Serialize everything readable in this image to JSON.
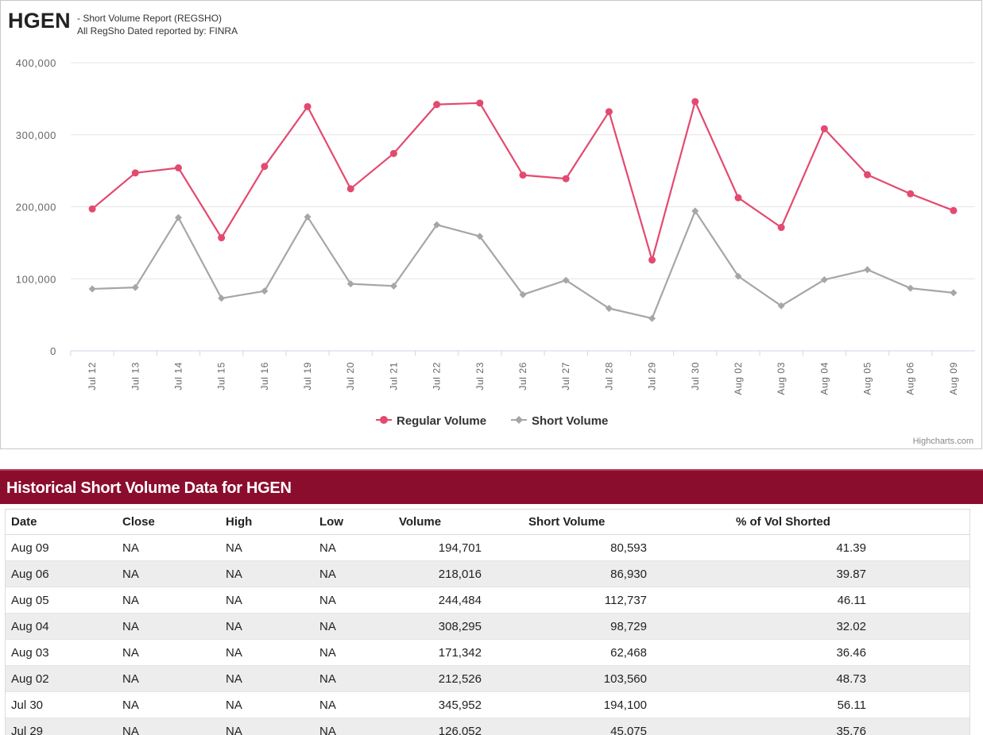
{
  "header": {
    "ticker": "HGEN",
    "subtitle_line1": "- Short Volume Report  (REGSHO)",
    "subtitle_line2": "All RegSho Dated reported by: FINRA"
  },
  "chart_credit": "Highcharts.com",
  "chart_data": {
    "type": "line",
    "title": "",
    "categories": [
      "Jul 12",
      "Jul 13",
      "Jul 14",
      "Jul 15",
      "Jul 16",
      "Jul 19",
      "Jul 20",
      "Jul 21",
      "Jul 22",
      "Jul 23",
      "Jul 26",
      "Jul 27",
      "Jul 28",
      "Jul 29",
      "Jul 30",
      "Aug 02",
      "Aug 03",
      "Aug 04",
      "Aug 05",
      "Aug 06",
      "Aug 09"
    ],
    "series": [
      {
        "name": "Regular Volume",
        "color": "#e34a6f",
        "marker": "circle",
        "values": [
          197000,
          247000,
          254000,
          157000,
          256000,
          339000,
          225000,
          274000,
          342000,
          344000,
          244000,
          239000,
          332000,
          126052,
          345952,
          212526,
          171342,
          308295,
          244484,
          218016,
          194701
        ]
      },
      {
        "name": "Short Volume",
        "color": "#a6a6a6",
        "marker": "diamond",
        "values": [
          86000,
          88000,
          185000,
          73000,
          83000,
          186000,
          93000,
          90000,
          175000,
          159000,
          78000,
          98000,
          59000,
          45075,
          194100,
          103560,
          62468,
          98729,
          112737,
          86930,
          80593
        ]
      }
    ],
    "y_ticks": [
      "0",
      "100,000",
      "200,000",
      "300,000",
      "400,000"
    ],
    "ylim": [
      0,
      400000
    ],
    "legend": "bottom-center",
    "grid": true
  },
  "table": {
    "title": "Historical Short Volume Data for HGEN",
    "columns": [
      "Date",
      "Close",
      "High",
      "Low",
      "Volume",
      "Short Volume",
      "% of Vol Shorted"
    ],
    "rows": [
      [
        "Aug 09",
        "NA",
        "NA",
        "NA",
        "194,701",
        "80,593",
        "41.39"
      ],
      [
        "Aug 06",
        "NA",
        "NA",
        "NA",
        "218,016",
        "86,930",
        "39.87"
      ],
      [
        "Aug 05",
        "NA",
        "NA",
        "NA",
        "244,484",
        "112,737",
        "46.11"
      ],
      [
        "Aug 04",
        "NA",
        "NA",
        "NA",
        "308,295",
        "98,729",
        "32.02"
      ],
      [
        "Aug 03",
        "NA",
        "NA",
        "NA",
        "171,342",
        "62,468",
        "36.46"
      ],
      [
        "Aug 02",
        "NA",
        "NA",
        "NA",
        "212,526",
        "103,560",
        "48.73"
      ],
      [
        "Jul 30",
        "NA",
        "NA",
        "NA",
        "345,952",
        "194,100",
        "56.11"
      ],
      [
        "Jul 29",
        "NA",
        "NA",
        "NA",
        "126,052",
        "45,075",
        "35.76"
      ]
    ]
  }
}
